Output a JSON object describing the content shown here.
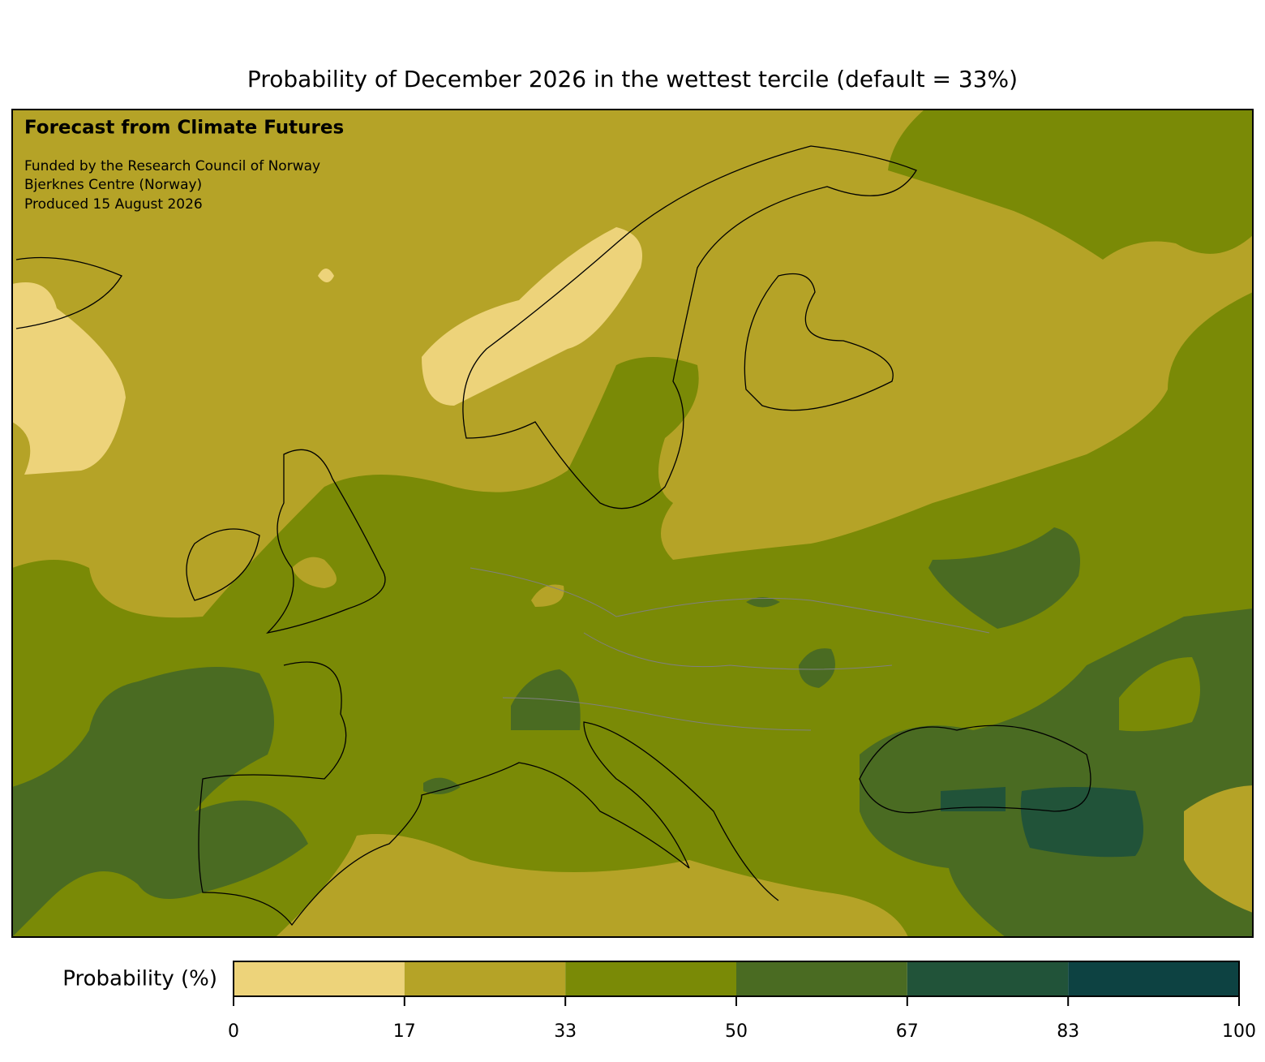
{
  "title": "Probability of December 2026 in the wettest tercile (default = 33%)",
  "annotations": {
    "heading": "Forecast from Climate Futures",
    "lines": [
      "Funded by the Research Council of Norway",
      "Bjerknes Centre (Norway)",
      "Produced 15 August 2026"
    ]
  },
  "colorbar": {
    "label": "Probability (%)",
    "ticks": [
      0,
      17,
      33,
      50,
      67,
      83,
      100
    ],
    "colors": [
      "#edd37a",
      "#b5a327",
      "#7a8a06",
      "#4a6b22",
      "#215339",
      "#0d4242"
    ]
  }
}
